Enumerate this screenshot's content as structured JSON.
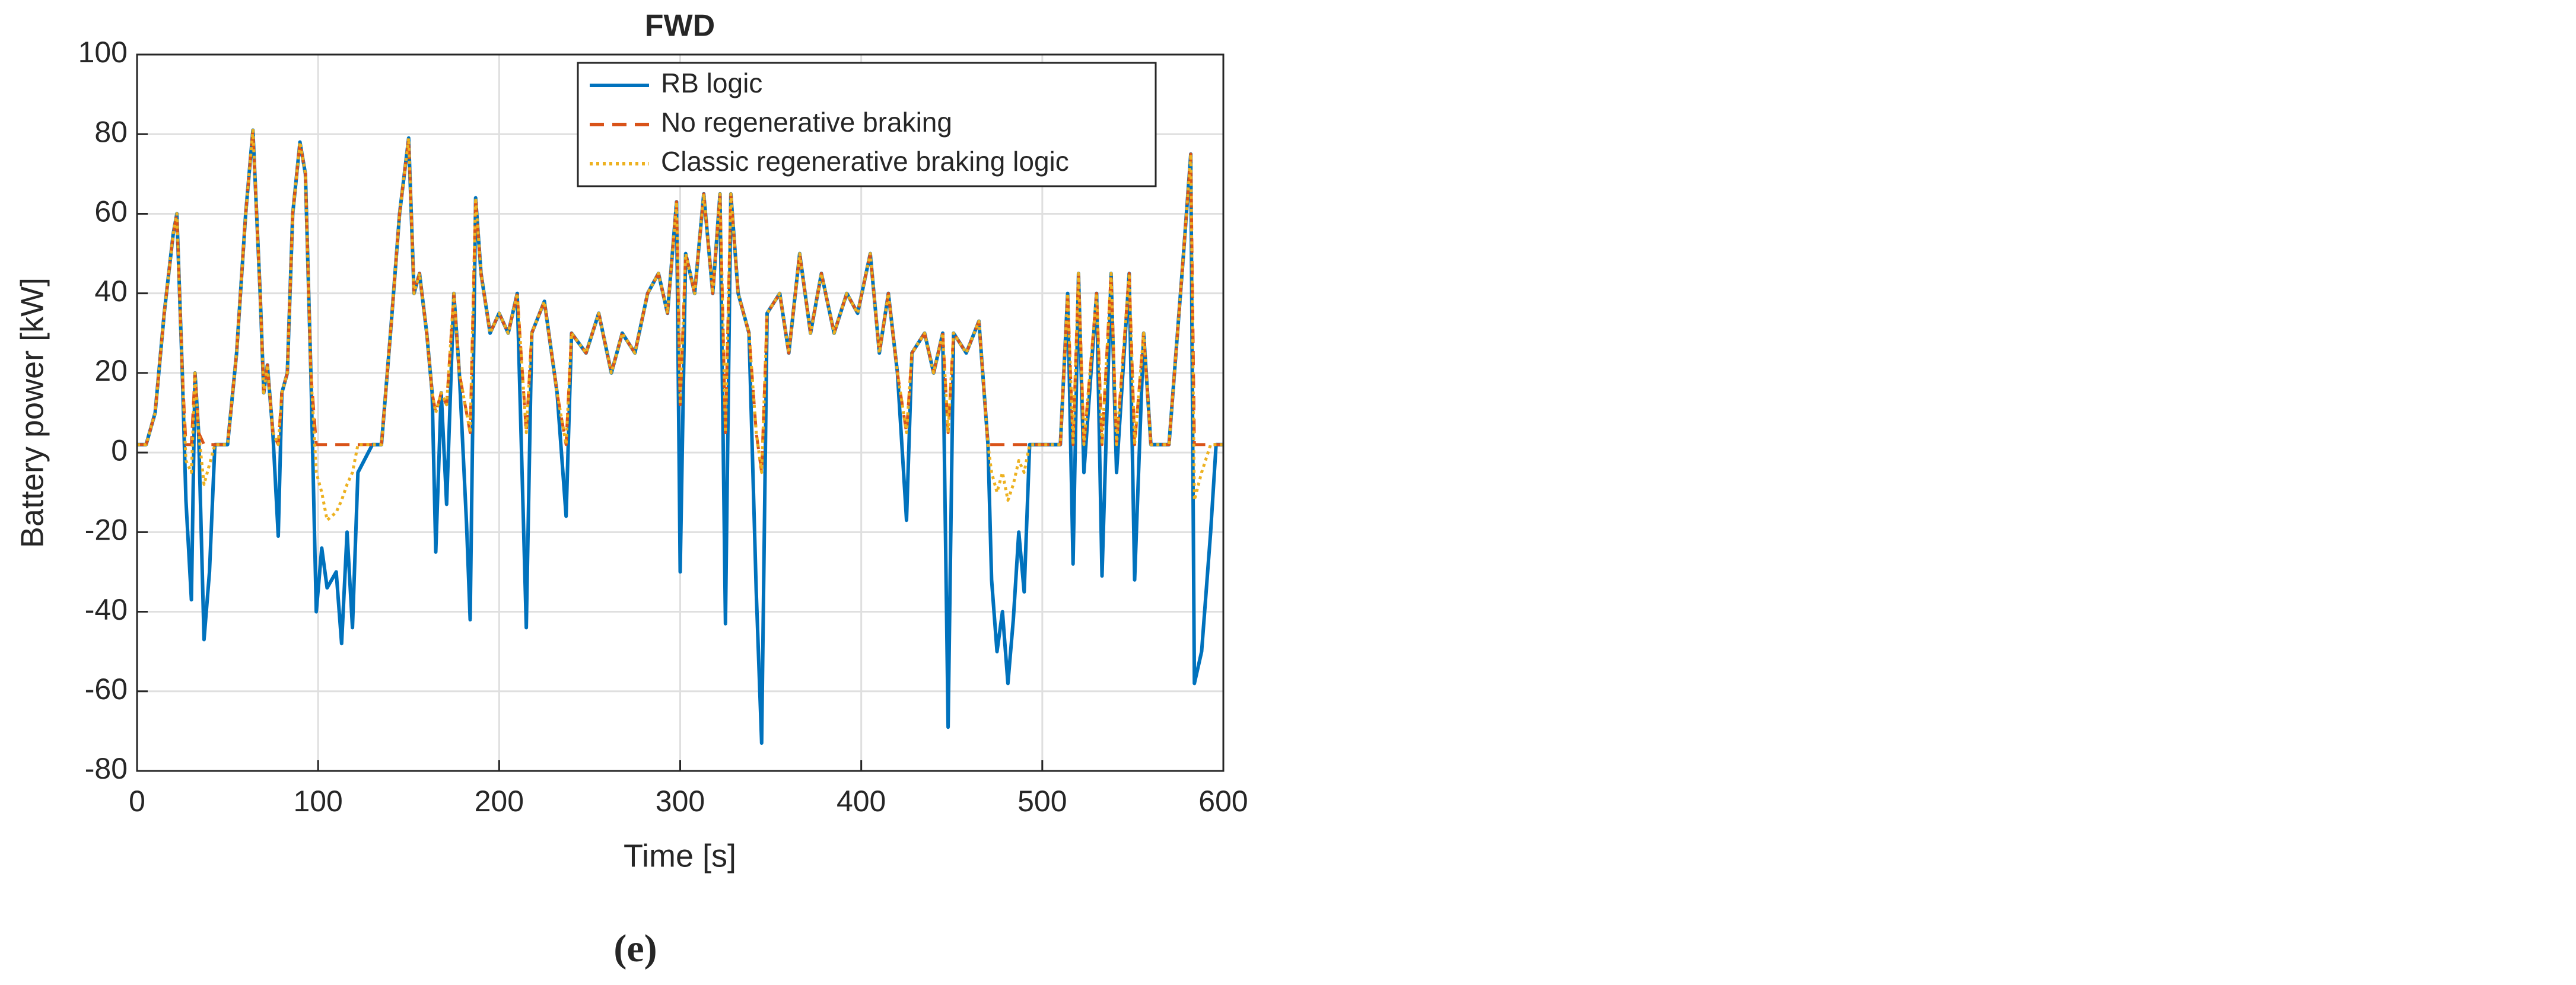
{
  "chart_data": {
    "type": "line",
    "title": "FWD",
    "x_label": "Time [s]",
    "y_label": "Battery power [kW]",
    "caption": "(e)",
    "x": [
      0,
      5,
      10,
      15,
      20,
      22,
      25,
      27,
      30,
      32,
      34,
      37,
      40,
      43,
      50,
      55,
      60,
      64,
      68,
      70,
      72,
      75,
      78,
      80,
      83,
      86,
      90,
      93,
      96,
      99,
      102,
      105,
      110,
      113,
      116,
      119,
      122,
      130,
      135,
      140,
      145,
      150,
      153,
      156,
      160,
      163,
      165,
      168,
      171,
      175,
      178,
      182,
      184,
      187,
      190,
      195,
      200,
      205,
      210,
      215,
      218,
      225,
      232,
      237,
      240,
      248,
      255,
      262,
      268,
      275,
      282,
      288,
      293,
      298,
      300,
      303,
      308,
      313,
      318,
      322,
      325,
      328,
      332,
      338,
      342,
      345,
      348,
      355,
      360,
      366,
      372,
      378,
      385,
      392,
      398,
      405,
      410,
      415,
      420,
      425,
      428,
      435,
      440,
      445,
      448,
      451,
      458,
      465,
      470,
      472,
      475,
      478,
      481,
      484,
      487,
      490,
      493,
      500,
      510,
      514,
      517,
      520,
      523,
      530,
      533,
      538,
      541,
      548,
      551,
      556,
      560,
      570,
      578,
      582,
      584,
      588,
      593,
      596,
      600
    ],
    "series": [
      {
        "name": "RB logic",
        "color": "#0072bd",
        "style": "solid",
        "values": [
          2,
          2,
          10,
          35,
          55,
          60,
          20,
          -12,
          -37,
          20,
          5,
          -47,
          -30,
          2,
          2,
          25,
          60,
          81,
          40,
          15,
          22,
          5,
          -21,
          15,
          20,
          60,
          78,
          70,
          20,
          -40,
          -24,
          -34,
          -30,
          -48,
          -20,
          -44,
          -5,
          2,
          2,
          30,
          60,
          79,
          40,
          45,
          30,
          15,
          -25,
          15,
          -13,
          40,
          20,
          -18,
          -42,
          64,
          45,
          30,
          35,
          30,
          40,
          -44,
          30,
          38,
          15,
          -16,
          30,
          25,
          35,
          20,
          30,
          25,
          40,
          45,
          35,
          63,
          -30,
          50,
          40,
          65,
          40,
          65,
          -43,
          65,
          40,
          30,
          -35,
          -73,
          35,
          40,
          25,
          50,
          30,
          45,
          30,
          40,
          35,
          50,
          25,
          40,
          20,
          -17,
          25,
          30,
          20,
          30,
          -69,
          30,
          25,
          33,
          2,
          -32,
          -50,
          -40,
          -58,
          -42,
          -20,
          -35,
          2,
          2,
          2,
          40,
          -28,
          45,
          -5,
          40,
          -31,
          45,
          -5,
          45,
          -32,
          30,
          2,
          2,
          50,
          75,
          -58,
          -50,
          -20,
          2,
          2
        ]
      },
      {
        "name": "No regenerative braking",
        "color": "#d95319",
        "style": "dashed",
        "values": [
          2,
          2,
          10,
          35,
          55,
          60,
          20,
          2,
          2,
          20,
          5,
          2,
          2,
          2,
          2,
          25,
          60,
          81,
          40,
          15,
          22,
          5,
          2,
          15,
          20,
          60,
          78,
          70,
          20,
          2,
          2,
          2,
          2,
          2,
          2,
          2,
          2,
          2,
          2,
          30,
          60,
          79,
          40,
          45,
          30,
          15,
          10,
          15,
          12,
          40,
          20,
          10,
          5,
          64,
          45,
          30,
          35,
          30,
          40,
          5,
          30,
          38,
          15,
          2,
          30,
          25,
          35,
          20,
          30,
          25,
          40,
          45,
          35,
          63,
          12,
          50,
          40,
          65,
          40,
          65,
          5,
          65,
          40,
          30,
          5,
          -5,
          35,
          40,
          25,
          50,
          30,
          45,
          30,
          40,
          35,
          50,
          25,
          40,
          20,
          5,
          25,
          30,
          20,
          30,
          5,
          30,
          25,
          33,
          2,
          2,
          2,
          2,
          2,
          2,
          2,
          2,
          2,
          2,
          2,
          40,
          2,
          45,
          2,
          40,
          2,
          45,
          2,
          45,
          2,
          30,
          2,
          2,
          50,
          75,
          2,
          2,
          2,
          2,
          2
        ]
      },
      {
        "name": "Classic regenerative braking logic",
        "color": "#edb120",
        "style": "dotted",
        "values": [
          2,
          2,
          10,
          35,
          55,
          60,
          20,
          -2,
          -5,
          20,
          5,
          -8,
          -3,
          2,
          2,
          25,
          60,
          81,
          40,
          15,
          22,
          5,
          2,
          15,
          20,
          60,
          78,
          70,
          20,
          -5,
          -10,
          -17,
          -15,
          -12,
          -8,
          -5,
          2,
          2,
          2,
          30,
          60,
          79,
          40,
          45,
          30,
          15,
          10,
          15,
          12,
          40,
          20,
          10,
          5,
          64,
          45,
          30,
          35,
          30,
          40,
          5,
          30,
          38,
          15,
          2,
          30,
          25,
          35,
          20,
          30,
          25,
          40,
          45,
          35,
          63,
          12,
          50,
          40,
          65,
          40,
          65,
          5,
          65,
          40,
          30,
          5,
          -5,
          35,
          40,
          25,
          50,
          30,
          45,
          30,
          40,
          35,
          50,
          25,
          40,
          20,
          5,
          25,
          30,
          20,
          30,
          5,
          30,
          25,
          33,
          2,
          -5,
          -10,
          -5,
          -12,
          -8,
          -2,
          -5,
          2,
          2,
          2,
          40,
          2,
          45,
          2,
          40,
          2,
          45,
          2,
          45,
          2,
          30,
          2,
          2,
          50,
          75,
          -12,
          -5,
          2,
          2,
          2
        ]
      }
    ],
    "xlim": [
      0,
      600
    ],
    "ylim": [
      -80,
      100
    ],
    "xticks": [
      0,
      100,
      200,
      300,
      400,
      500,
      600
    ],
    "yticks": [
      -80,
      -60,
      -40,
      -20,
      0,
      20,
      40,
      60,
      80,
      100
    ],
    "grid": true,
    "legend": "upper right"
  }
}
